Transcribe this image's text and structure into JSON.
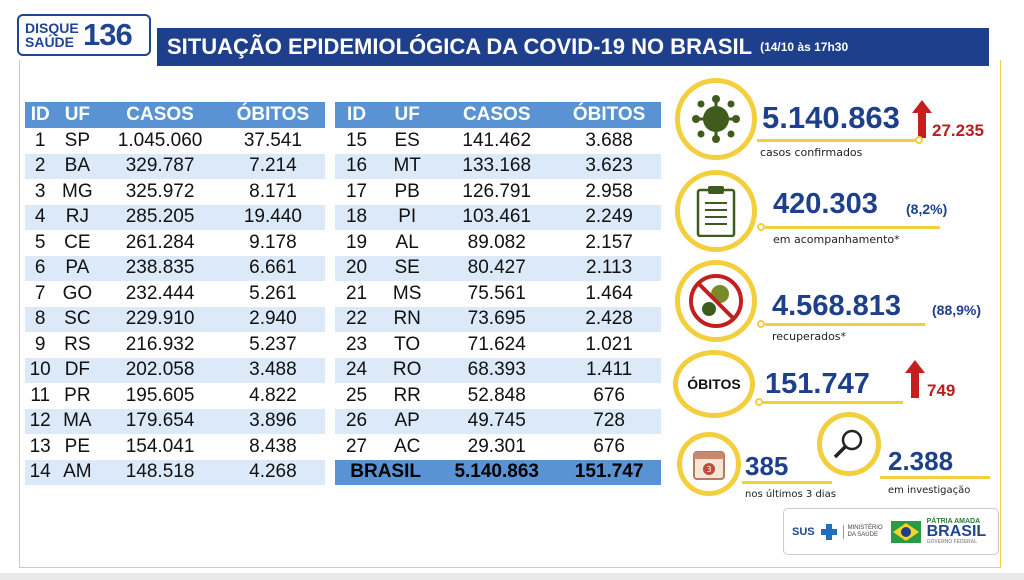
{
  "logo": {
    "line1": "DISQUE",
    "line2": "SAÚDE",
    "number": "136"
  },
  "header": {
    "title": "SITUAÇÃO EPIDEMIOLÓGICA DA COVID-19 NO BRASIL",
    "date": "(14/10 às 17h30"
  },
  "table_left": {
    "headers": [
      "ID",
      "UF",
      "CASOS",
      "ÓBITOS"
    ],
    "rows": [
      [
        "1",
        "SP",
        "1.045.060",
        "37.541"
      ],
      [
        "2",
        "BA",
        "329.787",
        "7.214"
      ],
      [
        "3",
        "MG",
        "325.972",
        "8.171"
      ],
      [
        "4",
        "RJ",
        "285.205",
        "19.440"
      ],
      [
        "5",
        "CE",
        "261.284",
        "9.178"
      ],
      [
        "6",
        "PA",
        "238.835",
        "6.661"
      ],
      [
        "7",
        "GO",
        "232.444",
        "5.261"
      ],
      [
        "8",
        "SC",
        "229.910",
        "2.940"
      ],
      [
        "9",
        "RS",
        "216.932",
        "5.237"
      ],
      [
        "10",
        "DF",
        "202.058",
        "3.488"
      ],
      [
        "11",
        "PR",
        "195.605",
        "4.822"
      ],
      [
        "12",
        "MA",
        "179.654",
        "3.896"
      ],
      [
        "13",
        "PE",
        "154.041",
        "8.438"
      ],
      [
        "14",
        "AM",
        "148.518",
        "4.268"
      ]
    ]
  },
  "table_right": {
    "headers": [
      "ID",
      "UF",
      "CASOS",
      "ÓBITOS"
    ],
    "rows": [
      [
        "15",
        "ES",
        "141.462",
        "3.688"
      ],
      [
        "16",
        "MT",
        "133.168",
        "3.623"
      ],
      [
        "17",
        "PB",
        "126.791",
        "2.958"
      ],
      [
        "18",
        "PI",
        "103.461",
        "2.249"
      ],
      [
        "19",
        "AL",
        "89.082",
        "2.157"
      ],
      [
        "20",
        "SE",
        "80.427",
        "2.113"
      ],
      [
        "21",
        "MS",
        "75.561",
        "1.464"
      ],
      [
        "22",
        "RN",
        "73.695",
        "2.428"
      ],
      [
        "23",
        "TO",
        "71.624",
        "1.021"
      ],
      [
        "24",
        "RO",
        "68.393",
        "1.411"
      ],
      [
        "25",
        "RR",
        "52.848",
        "676"
      ],
      [
        "26",
        "AP",
        "49.745",
        "728"
      ],
      [
        "27",
        "AC",
        "29.301",
        "676"
      ]
    ],
    "total": {
      "label": "BRASIL",
      "casos": "5.140.863",
      "obitos": "151.747"
    }
  },
  "stats": {
    "confirmed": {
      "value": "5.140.863",
      "increase": "27.235",
      "label": "casos confirmados",
      "icon": "virus-icon"
    },
    "monitoring": {
      "value": "420.303",
      "pct": "(8,2%)",
      "label": "em acompanhamento*",
      "icon": "clipboard-icon"
    },
    "recovered": {
      "value": "4.568.813",
      "pct": "(88,9%)",
      "label": "recuperados*",
      "icon": "no-virus-icon"
    },
    "deaths": {
      "badge": "ÓBITOS",
      "value": "151.747",
      "increase": "749"
    },
    "recent": {
      "value": "385",
      "label": "nos últimos 3 dias",
      "calendar_day": "3",
      "icon": "calendar-icon"
    },
    "investigating": {
      "value": "2.388",
      "label": "em investigação",
      "icon": "magnifier-icon"
    }
  },
  "footer": {
    "sus": "SUS",
    "ministry": "MINISTÉRIO DA SAÚDE",
    "slogan": "PÁTRIA AMADA",
    "country": "BRASIL",
    "gov": "GOVERNO FEDERAL"
  },
  "colors": {
    "navy": "#1e3f8c",
    "table_header": "#5a93d4",
    "stripe": "#dbe9f8",
    "yellow": "#f3cf3e",
    "red": "#b81f1f"
  }
}
